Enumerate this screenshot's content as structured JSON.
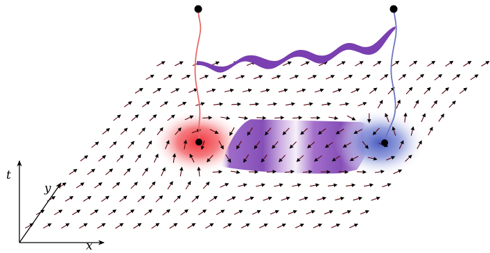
{
  "axes": {
    "t_label": "t",
    "y_label": "y",
    "x_label": "x"
  },
  "colors": {
    "red_vortex": "#f0585c",
    "blue_vortex": "#5a6cc8",
    "purple_ribbon": "#7a3fb0",
    "string_red": "#e86a6a",
    "string_blue": "#6b74c0",
    "arrow_head": "#000000",
    "arrow_tail": "#7a0000"
  },
  "elements": {
    "vortex_left": {
      "color": "red",
      "winding": "+1"
    },
    "vortex_right": {
      "color": "blue",
      "winding": "-1"
    },
    "purple_domain": {
      "color": "purple"
    },
    "strings": [
      "red-string",
      "blue-string"
    ],
    "ribbon": "purple-twisted-ribbon"
  }
}
